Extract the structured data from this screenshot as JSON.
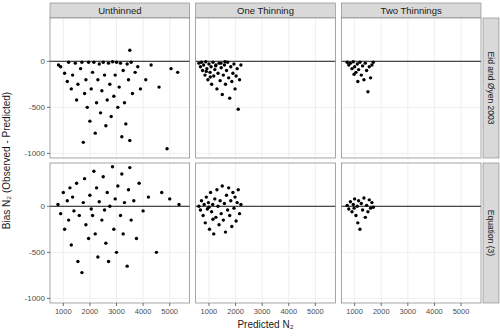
{
  "chart_data": {
    "type": "scatter",
    "x_label": "Predicted N₂",
    "y_label": "Bias N₂ (Observed - Predicted)",
    "columns": [
      "Unthinned",
      "One Thinning",
      "Two Thinnings"
    ],
    "rows": [
      "Eid and Øyen 2003",
      "Equation (3)"
    ],
    "xlim": [
      500,
      5750
    ],
    "ylim": [
      -1050,
      470
    ],
    "xticks": [
      1000,
      2000,
      3000,
      4000,
      5000
    ],
    "yticks": [
      -1000,
      -500,
      0
    ],
    "hline": 0,
    "grid": true,
    "color": "#000000",
    "marker": "circle",
    "panels": [
      [
        {
          "x": [
            820,
            900,
            1050,
            1150,
            1200,
            1300,
            1350,
            1450,
            1500,
            1550,
            1650,
            1700,
            1750,
            1800,
            1850,
            1900,
            1950,
            2000,
            2050,
            2100,
            2150,
            2200,
            2250,
            2300,
            2350,
            2400,
            2450,
            2500,
            2550,
            2600,
            2650,
            2700,
            2750,
            2800,
            2850,
            2900,
            2950,
            3000,
            3050,
            3100,
            3150,
            3200,
            3250,
            3300,
            3350,
            3400,
            3450,
            3500,
            3550,
            3600,
            3700,
            3800,
            3900,
            4100,
            4300,
            4600,
            4900,
            5050,
            5300,
            3500
          ],
          "values": [
            -40,
            -60,
            -130,
            -220,
            -10,
            -300,
            -150,
            -20,
            -420,
            -250,
            -80,
            -10,
            -880,
            -350,
            -200,
            -500,
            -10,
            -650,
            -300,
            -120,
            -10,
            -780,
            -450,
            -200,
            -30,
            -560,
            -320,
            -10,
            -150,
            -700,
            -420,
            -20,
            -250,
            -600,
            -5,
            -380,
            -150,
            -10,
            -500,
            -280,
            -20,
            -820,
            -100,
            -450,
            -680,
            -30,
            -200,
            -860,
            -10,
            -350,
            -120,
            -60,
            -300,
            -200,
            -40,
            -280,
            -950,
            -80,
            -120,
            120
          ]
        },
        {
          "x": [
            620,
            680,
            720,
            760,
            800,
            850,
            880,
            920,
            960,
            1000,
            1040,
            1080,
            1100,
            1150,
            1180,
            1220,
            1260,
            1300,
            1340,
            1380,
            1420,
            1460,
            1500,
            1540,
            1580,
            1620,
            1660,
            1700,
            1740,
            1780,
            1820,
            1860,
            1900,
            1940,
            1980,
            2020,
            2060,
            2100,
            2150,
            2200,
            1250,
            1450,
            1600,
            900,
            1050
          ],
          "values": [
            -20,
            -60,
            -10,
            -100,
            -40,
            -150,
            -5,
            -80,
            -200,
            -30,
            -120,
            -60,
            -250,
            -10,
            -160,
            -90,
            -40,
            -300,
            -130,
            -20,
            -210,
            -70,
            -360,
            -150,
            -40,
            -250,
            -100,
            -10,
            -180,
            -400,
            -60,
            -220,
            -130,
            -30,
            -300,
            -160,
            -80,
            -520,
            -200,
            -40,
            -50,
            -20,
            -5,
            -110,
            -170
          ]
        },
        {
          "x": [
            720,
            780,
            840,
            900,
            950,
            1000,
            1050,
            1100,
            1150,
            1200,
            1250,
            1300,
            1350,
            1400,
            1450,
            1500,
            1550,
            1600,
            1650,
            1700,
            1120,
            980
          ],
          "values": [
            -10,
            -40,
            -20,
            -80,
            -5,
            -60,
            -120,
            -30,
            -90,
            -10,
            -150,
            -50,
            -200,
            -20,
            -100,
            -330,
            -60,
            -180,
            -40,
            -10,
            -220,
            -140
          ]
        }
      ],
      [
        {
          "x": [
            800,
            900,
            1000,
            1050,
            1150,
            1200,
            1300,
            1350,
            1400,
            1500,
            1550,
            1600,
            1700,
            1750,
            1800,
            1850,
            1950,
            2000,
            2050,
            2150,
            2200,
            2250,
            2300,
            2350,
            2450,
            2500,
            2550,
            2600,
            2650,
            2700,
            2750,
            2850,
            2900,
            2950,
            3000,
            3050,
            3150,
            3200,
            3250,
            3300,
            3400,
            3450,
            3500,
            3550,
            3650,
            3750,
            3850,
            4000,
            4200,
            4500,
            4700,
            5000,
            5350,
            1250,
            2100
          ],
          "values": [
            20,
            -80,
            150,
            -250,
            60,
            -150,
            -420,
            100,
            -50,
            250,
            -600,
            -100,
            -720,
            40,
            300,
            -200,
            -350,
            120,
            -30,
            380,
            -300,
            200,
            -550,
            50,
            -150,
            320,
            -40,
            -400,
            150,
            -600,
            0,
            430,
            -250,
            80,
            -500,
            220,
            -100,
            350,
            -300,
            40,
            -650,
            180,
            420,
            -150,
            60,
            -350,
            250,
            -50,
            100,
            -500,
            150,
            80,
            20,
            200,
            -100
          ]
        },
        {
          "x": [
            620,
            680,
            720,
            780,
            820,
            860,
            900,
            940,
            980,
            1020,
            1060,
            1100,
            1140,
            1180,
            1220,
            1260,
            1300,
            1340,
            1380,
            1420,
            1460,
            1500,
            1540,
            1580,
            1620,
            1660,
            1700,
            1740,
            1780,
            1820,
            1860,
            1900,
            1940,
            1980,
            2020,
            2060,
            2100,
            2150,
            2200,
            1000,
            1150
          ],
          "values": [
            0,
            -40,
            60,
            -100,
            20,
            -180,
            100,
            -30,
            40,
            -250,
            150,
            -60,
            20,
            -300,
            80,
            -120,
            180,
            0,
            -200,
            60,
            -80,
            220,
            -150,
            30,
            -280,
            120,
            -40,
            200,
            -100,
            60,
            -220,
            150,
            -20,
            100,
            -160,
            40,
            180,
            -80,
            20,
            -10,
            -140
          ]
        },
        {
          "x": [
            720,
            780,
            840,
            900,
            950,
            1000,
            1050,
            1100,
            1150,
            1200,
            1250,
            1300,
            1350,
            1400,
            1450,
            1500,
            1550,
            1600,
            1650,
            1700,
            1120,
            980
          ],
          "values": [
            10,
            -30,
            50,
            -60,
            20,
            80,
            -100,
            0,
            60,
            -250,
            30,
            -40,
            90,
            -120,
            10,
            -60,
            70,
            -20,
            40,
            -10,
            -180,
            -20
          ]
        }
      ]
    ]
  }
}
